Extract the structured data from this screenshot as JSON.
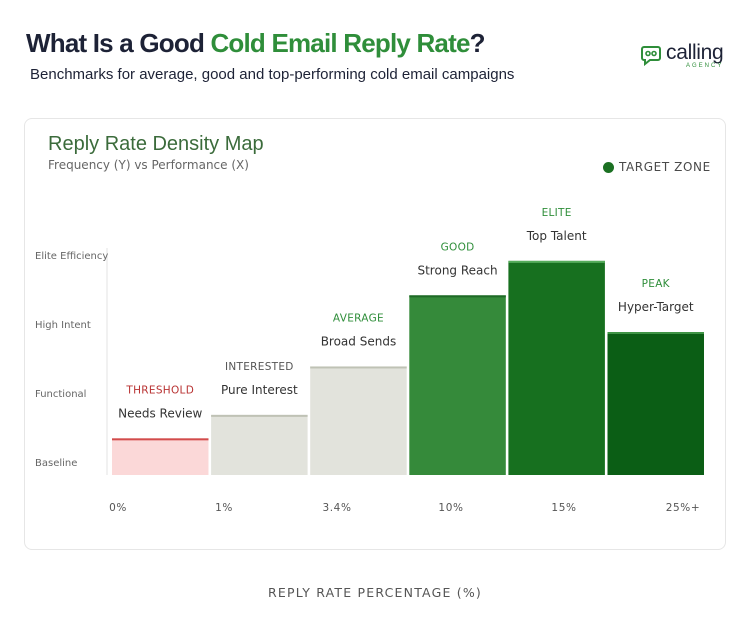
{
  "header": {
    "title_part1": "What Is a Good ",
    "title_accent": "Cold Email Reply Rate",
    "title_part2": "?",
    "subtitle": "Benchmarks for average, good and top-performing cold email campaigns"
  },
  "logo": {
    "word": "calling",
    "sub": "AGENCY",
    "icon": "phone-chat-icon"
  },
  "chart_data": {
    "type": "bar",
    "title": "Reply Rate Density Map",
    "subtitle": "Frequency (Y) vs Performance (X)",
    "legend": {
      "label": "TARGET ZONE",
      "color": "#1b7022",
      "placement": "top-right"
    },
    "xlabel": "REPLY RATE PERCENTAGE (%)",
    "x_ticks": [
      "0%",
      "1%",
      "3.4%",
      "10%",
      "15%",
      "25%+"
    ],
    "y_ticks": [
      "Baseline",
      "Functional",
      "High Intent",
      "Elite Efficiency"
    ],
    "ylim": [
      0,
      3
    ],
    "bars": [
      {
        "tier": "THRESHOLD",
        "label": "Needs Review",
        "value": 0.5,
        "color": "#fbd8d8",
        "top_color": "#d24b4b",
        "tier_color": "#b83232"
      },
      {
        "tier": "INTERESTED",
        "label": "Pure Interest",
        "value": 0.82,
        "color": "#e2e3dc",
        "top_color": "#bfc2b5",
        "tier_color": "#555555"
      },
      {
        "tier": "AVERAGE",
        "label": "Broad Sends",
        "value": 1.48,
        "color": "#e2e3dc",
        "top_color": "#bfc2b5",
        "tier_color": "#2f8e3a"
      },
      {
        "tier": "GOOD",
        "label": "Strong Reach",
        "value": 2.45,
        "color": "#358a3a",
        "top_color": "#1f6a26",
        "tier_color": "#2f8e3a"
      },
      {
        "tier": "ELITE",
        "label": "Top Talent",
        "value": 2.92,
        "color": "#17701f",
        "top_color": "#56ad5c",
        "tier_color": "#2f8e3a"
      },
      {
        "tier": "PEAK",
        "label": "Hyper-Target",
        "value": 1.95,
        "color": "#0b5e15",
        "top_color": "#3f9446",
        "tier_color": "#2f8e3a"
      }
    ]
  }
}
